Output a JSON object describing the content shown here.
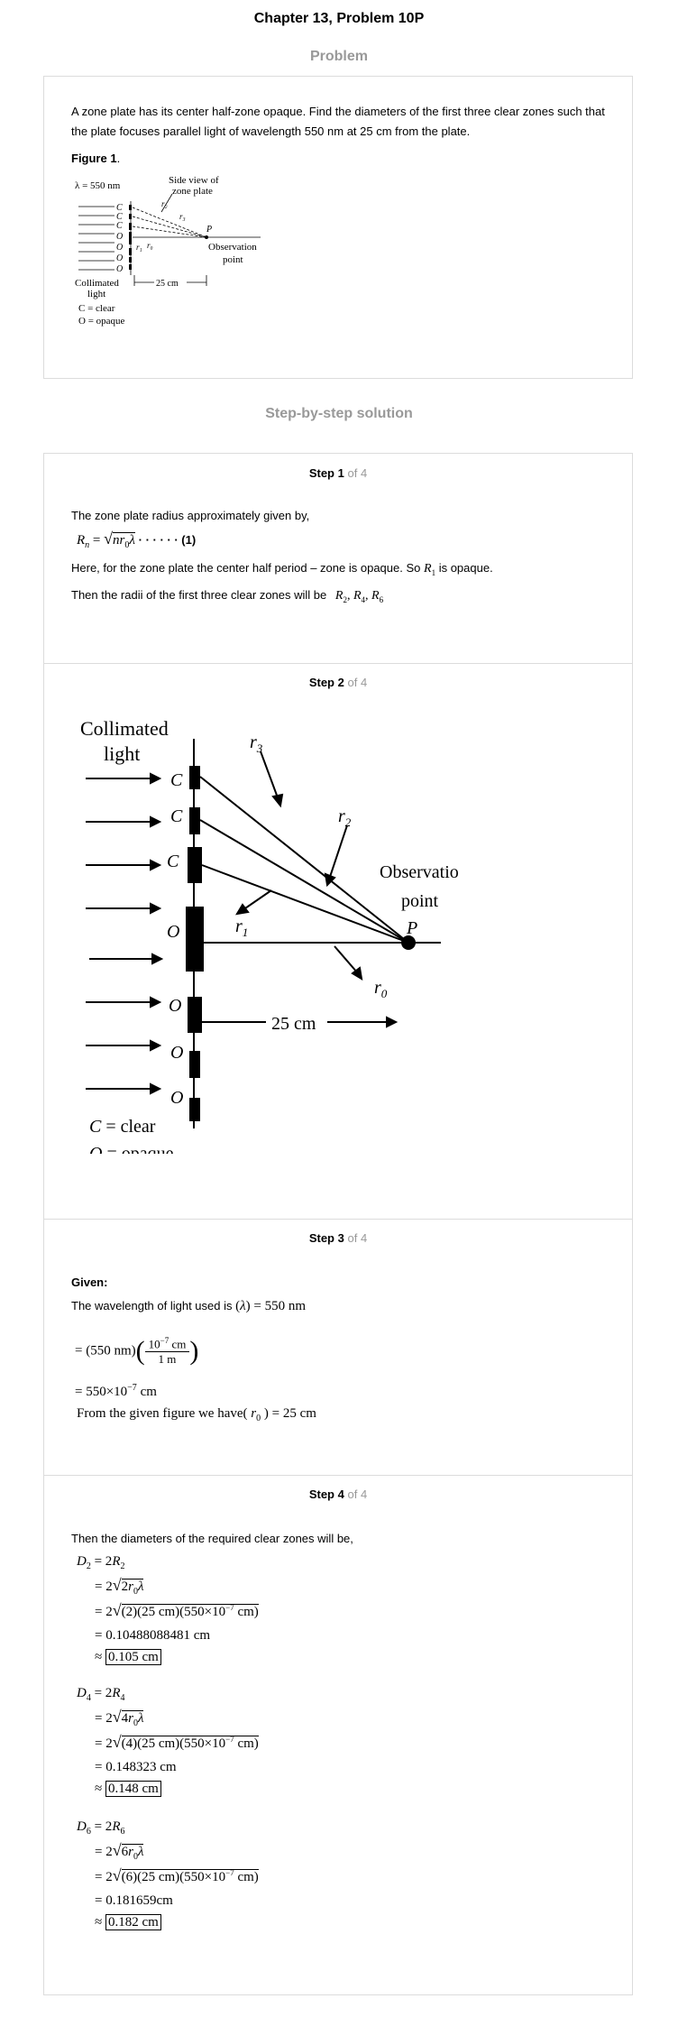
{
  "header": {
    "title": "Chapter 13, Problem 10P",
    "problem_heading": "Problem",
    "solution_heading": "Step-by-step solution"
  },
  "problem": {
    "text": "A zone plate has its center half-zone opaque. Find the diameters of the first three clear zones such that the plate focuses parallel light of wavelength 550 nm at 25 cm from the plate.",
    "figure_label": "Figure 1",
    "figure_label_suffix": ".",
    "figure": {
      "lambda": "λ = 550 nm",
      "side_view": "Side view of",
      "zone_plate": "zone plate",
      "observation": "Observation",
      "point": "point",
      "collimated": "Collimated",
      "light": "light",
      "distance": "25 cm",
      "clear_def": "C = clear",
      "opaque_def": "O = opaque",
      "P": "P"
    }
  },
  "steps": {
    "of_word": "of",
    "total": "4",
    "step_word": "Step",
    "s1": {
      "num": "1",
      "line1": "The zone plate radius approximately given by,",
      "eq1_tag": "· · · · · · (1)",
      "line2a": "Here, for the zone plate the center half period – zone is opaque. So",
      "line2b": "is opaque.",
      "line3": "Then the radii of the first three clear zones will be"
    },
    "s2": {
      "num": "2",
      "fig": {
        "collimated": "Collimated",
        "light": "light",
        "c": "C",
        "o": "O",
        "r1": "r",
        "r0": "r",
        "r2": "r",
        "r3": "r",
        "obs": "Observation",
        "point": "point",
        "P": "P",
        "dist": "25 cm",
        "clear": "= clear",
        "opaque": "= opaque"
      }
    },
    "s3": {
      "num": "3",
      "given": "Given:",
      "line1": "The wavelength of light used is",
      "line4": "From the given figure we have"
    },
    "s4": {
      "num": "4",
      "line1": "Then the diameters of the required clear zones will be,",
      "D2_val": "= 0.10488088481 cm",
      "D2_ans": "0.105 cm",
      "D4_val": "= 0.148323 cm",
      "D4_ans": "0.148 cm",
      "D6_val": "= 0.181659cm",
      "D6_ans": "0.182 cm"
    }
  }
}
